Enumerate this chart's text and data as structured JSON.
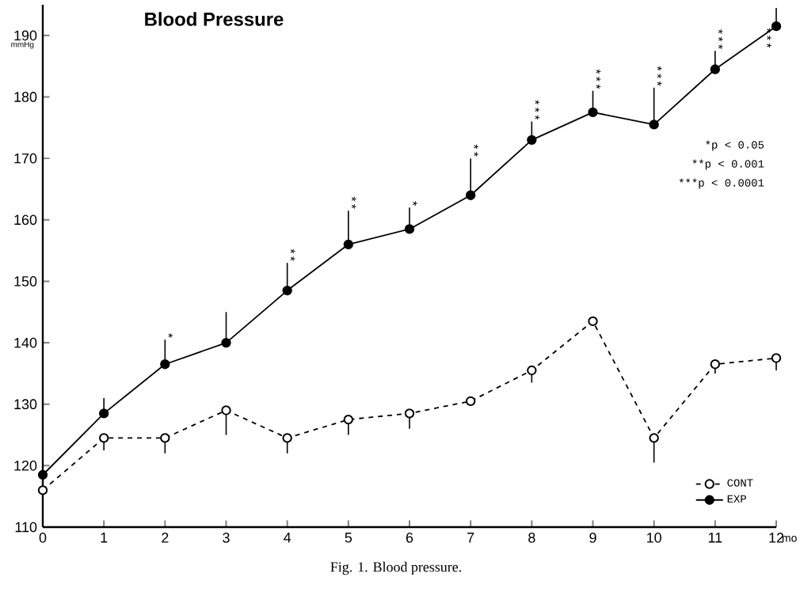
{
  "chart_data": {
    "type": "line",
    "title": "Blood Pressure",
    "xlabel": "mo",
    "ylabel": "mmHg",
    "x": [
      0,
      1,
      2,
      3,
      4,
      5,
      6,
      7,
      8,
      9,
      10,
      11,
      12
    ],
    "xlim": [
      0,
      12
    ],
    "xticks": [
      0,
      1,
      2,
      3,
      4,
      5,
      6,
      7,
      8,
      9,
      10,
      11,
      {
        "value": 12,
        "label": "12"
      }
    ],
    "ylim": [
      110,
      195
    ],
    "yticks": [
      110,
      120,
      130,
      140,
      150,
      160,
      170,
      180,
      190
    ],
    "grid": false,
    "legend": "bottom right",
    "marker": "circle",
    "series": [
      {
        "name": "CONT",
        "color": "#000000",
        "line_style": "dashed",
        "values": [
          116,
          124.5,
          124.5,
          129,
          124.5,
          127.5,
          128.5,
          130.5,
          135.5,
          143.5,
          124.5,
          136.5,
          137.5
        ],
        "errors": [
          null,
          [
            122.5,
            124.5
          ],
          [
            122,
            124.5
          ],
          [
            125,
            129
          ],
          [
            122,
            124.5
          ],
          [
            125,
            127.5
          ],
          [
            126,
            128.5
          ],
          null,
          [
            133.5,
            135.5
          ],
          null,
          [
            120.5,
            124.5
          ],
          [
            135,
            136.5
          ],
          [
            135.5,
            137.5
          ]
        ]
      },
      {
        "name": "EXP",
        "color": "#000000",
        "line_style": "solid",
        "values": [
          118.5,
          128.5,
          136.5,
          140,
          148.5,
          156,
          158.5,
          164,
          173,
          177.5,
          175.5,
          184.5,
          191.5
        ],
        "errors": [
          null,
          [
            128.5,
            131
          ],
          [
            136.5,
            140.5
          ],
          [
            140,
            145
          ],
          [
            148.5,
            153
          ],
          [
            156,
            161.5
          ],
          [
            158.5,
            162
          ],
          [
            164,
            170
          ],
          [
            173,
            176
          ],
          [
            177.5,
            181
          ],
          [
            175.5,
            181.5
          ],
          [
            184.5,
            187.5
          ],
          [
            191.5,
            194.5
          ]
        ]
      }
    ],
    "annotations": [
      {
        "text": "*",
        "x": 2,
        "y": 140.5
      },
      {
        "text": "**",
        "x": 4,
        "y": 153
      },
      {
        "text": "**",
        "x": 5,
        "y": 161.5
      },
      {
        "text": "*",
        "x": 6,
        "y": 162
      },
      {
        "text": "**",
        "x": 7,
        "y": 170
      },
      {
        "text": "***",
        "x": 8,
        "y": 176
      },
      {
        "text": "***",
        "x": 9,
        "y": 181
      },
      {
        "text": "***",
        "x": 10,
        "y": 181.5
      },
      {
        "text": "***",
        "x": 11,
        "y": 187.5
      },
      {
        "text": "***",
        "x": 12,
        "y": 191.5
      },
      "*p < 0.05",
      "**p < 0.001",
      "***p < 0.0001",
      "Fig. 1. Blood pressure."
    ]
  }
}
